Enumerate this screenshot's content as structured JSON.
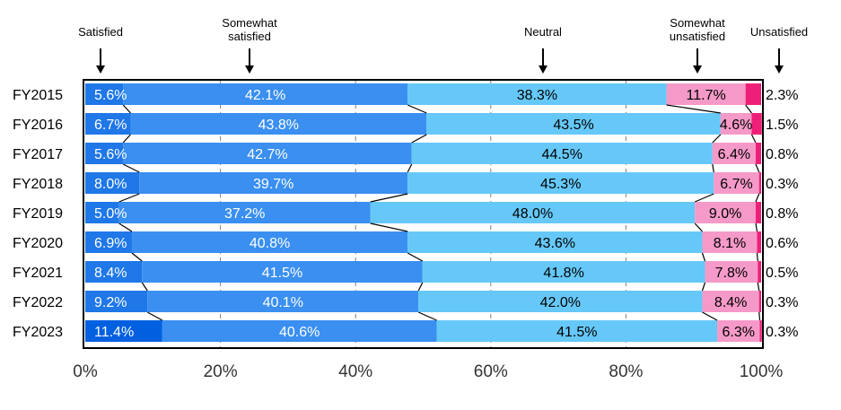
{
  "chart_data": {
    "type": "bar",
    "stacked": true,
    "orientation": "horizontal",
    "categories": [
      "FY2015",
      "FY2016",
      "FY2017",
      "FY2018",
      "FY2019",
      "FY2020",
      "FY2021",
      "FY2022",
      "FY2023"
    ],
    "series": [
      {
        "name": "Satisfied",
        "values": [
          5.6,
          6.7,
          5.6,
          8.0,
          5.0,
          6.9,
          8.4,
          9.2,
          11.4
        ]
      },
      {
        "name": "Somewhat\nsatisfied",
        "values": [
          42.1,
          43.8,
          42.7,
          39.7,
          37.2,
          40.8,
          41.5,
          40.1,
          40.6
        ]
      },
      {
        "name": "Neutral",
        "values": [
          38.3,
          43.5,
          44.5,
          45.3,
          48.0,
          43.6,
          41.8,
          42.0,
          41.5
        ]
      },
      {
        "name": "Somewhat\nunsatisfied",
        "values": [
          11.7,
          4.6,
          6.4,
          6.7,
          9.0,
          8.1,
          7.8,
          8.4,
          6.3
        ]
      },
      {
        "name": "Unsatisfied",
        "values": [
          2.3,
          1.5,
          0.8,
          0.3,
          0.8,
          0.6,
          0.5,
          0.3,
          0.3
        ]
      }
    ],
    "xlim": [
      0,
      100
    ],
    "x_ticks": [
      "0%",
      "20%",
      "40%",
      "60%",
      "80%",
      "100%"
    ],
    "grid": true,
    "legend": "top",
    "colors": {
      "satisfied_fill": "#1f77e8",
      "satisfied_last": "#0060e0",
      "somewhat_satisfied": "#3a8ff0",
      "neutral": "#66c8f8",
      "somewhat_unsatisfied": "#f59ac8",
      "unsatisfied": "#ee1f78"
    }
  }
}
